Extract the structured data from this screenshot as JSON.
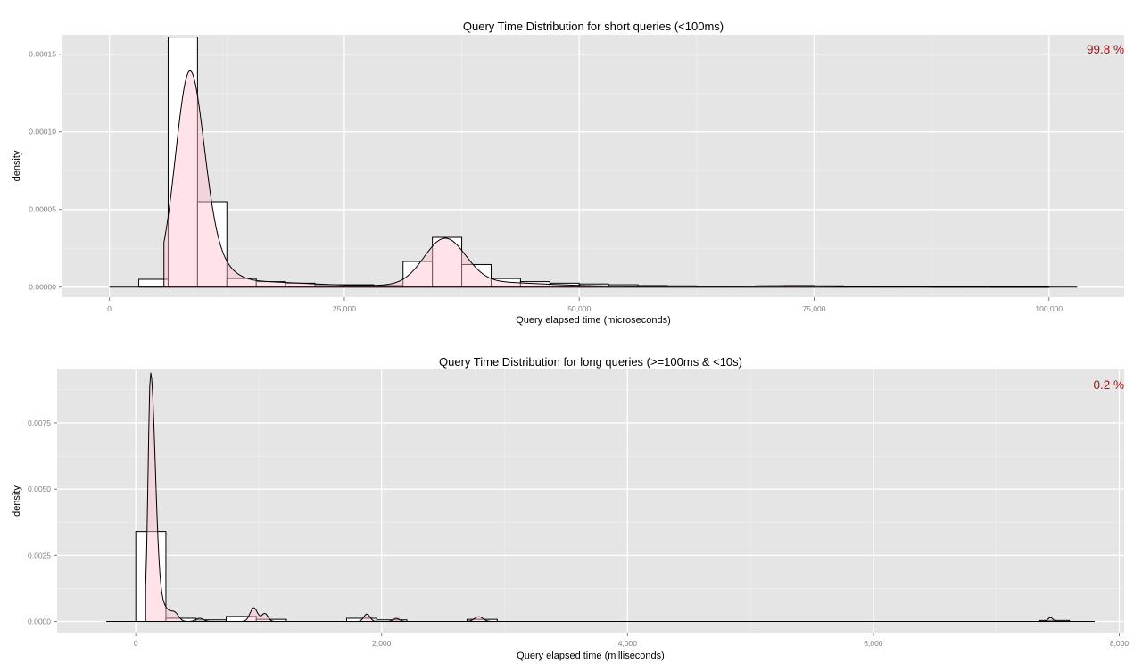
{
  "chart_data": [
    {
      "type": "histogram",
      "title": "Query Time Distribution for short queries (<100ms)",
      "xlabel": "Query elapsed time (microseconds)",
      "ylabel": "density",
      "annotation": "99.8 %",
      "annotation_color": "#a50f15",
      "background": "#e5e5e5",
      "grid": true,
      "xlim": [
        -5000,
        108000
      ],
      "ylim": [
        -6.5e-06,
        0.0001625
      ],
      "xticks": [
        0,
        25000,
        50000,
        75000,
        100000
      ],
      "xtick_labels": [
        "0",
        "25,000",
        "50,000",
        "75,000",
        "100,000"
      ],
      "yticks": [
        0,
        5e-05,
        0.0001,
        0.00015
      ],
      "ytick_labels": [
        "0.00000",
        "0.00005",
        "0.00010",
        "0.00015"
      ],
      "bins": [
        {
          "x0": 3125,
          "x1": 6250,
          "density": 5e-06
        },
        {
          "x0": 6250,
          "x1": 9375,
          "density": 0.000161
        },
        {
          "x0": 9375,
          "x1": 12500,
          "density": 5.5e-05
        },
        {
          "x0": 12500,
          "x1": 15625,
          "density": 5.5e-06
        },
        {
          "x0": 15625,
          "x1": 18750,
          "density": 3.5e-06
        },
        {
          "x0": 18750,
          "x1": 21875,
          "density": 2.5e-06
        },
        {
          "x0": 21875,
          "x1": 25000,
          "density": 1.5e-06
        },
        {
          "x0": 25000,
          "x1": 28125,
          "density": 1.5e-06
        },
        {
          "x0": 28125,
          "x1": 31250,
          "density": 1e-06
        },
        {
          "x0": 31250,
          "x1": 34375,
          "density": 1.65e-05
        },
        {
          "x0": 34375,
          "x1": 37500,
          "density": 3.2e-05
        },
        {
          "x0": 37500,
          "x1": 40625,
          "density": 1.45e-05
        },
        {
          "x0": 40625,
          "x1": 43750,
          "density": 5.5e-06
        },
        {
          "x0": 43750,
          "x1": 46875,
          "density": 3.5e-06
        },
        {
          "x0": 46875,
          "x1": 50000,
          "density": 2.5e-06
        },
        {
          "x0": 50000,
          "x1": 53125,
          "density": 2e-06
        },
        {
          "x0": 53125,
          "x1": 56250,
          "density": 1.5e-06
        },
        {
          "x0": 56250,
          "x1": 59375,
          "density": 1e-06
        },
        {
          "x0": 59375,
          "x1": 62500,
          "density": 8e-07
        },
        {
          "x0": 62500,
          "x1": 65625,
          "density": 6e-07
        },
        {
          "x0": 65625,
          "x1": 68750,
          "density": 6e-07
        },
        {
          "x0": 68750,
          "x1": 71875,
          "density": 8e-07
        },
        {
          "x0": 71875,
          "x1": 75000,
          "density": 1e-06
        },
        {
          "x0": 75000,
          "x1": 78125,
          "density": 8e-07
        },
        {
          "x0": 78125,
          "x1": 81250,
          "density": 5e-07
        },
        {
          "x0": 81250,
          "x1": 84375,
          "density": 4e-07
        },
        {
          "x0": 84375,
          "x1": 87500,
          "density": 3e-07
        },
        {
          "x0": 87500,
          "x1": 90625,
          "density": 2e-07
        },
        {
          "x0": 90625,
          "x1": 93750,
          "density": 2e-07
        },
        {
          "x0": 93750,
          "x1": 96875,
          "density": 1e-07
        },
        {
          "x0": 96875,
          "x1": 100000,
          "density": 1e-07
        }
      ],
      "density_curve": {
        "x_start": 5800,
        "x_end": 100000,
        "baseline_x": [
          0,
          103000
        ],
        "components": [
          {
            "mean": 8500,
            "sd": 1500,
            "peak": 0.0001265,
            "sd_right": 1500
          },
          {
            "mean": 10500,
            "sd": 2000,
            "peak": 1.5e-05,
            "sd_right": 2000
          },
          {
            "mean": 12500,
            "sd": 8000,
            "peak": 4e-06,
            "sd_right": 8000
          },
          {
            "mean": 35700,
            "sd": 2200,
            "peak": 2.9e-05,
            "sd_right": 2200
          },
          {
            "mean": 40000,
            "sd": 6000,
            "peak": 3e-06,
            "sd_right": 6000
          },
          {
            "mean": 62000,
            "sd": 12000,
            "peak": 6e-07,
            "sd_right": 12000
          },
          {
            "mean": 73000,
            "sd": 3000,
            "peak": 5e-07,
            "sd_right": 3000
          }
        ],
        "fill_color": "#ffc0cb",
        "fill_opacity": 0.45
      }
    },
    {
      "type": "histogram",
      "title": "Query Time Distribution for long queries (>=100ms & <10s)",
      "xlabel": "Query elapsed time (milliseconds)",
      "ylabel": "density",
      "annotation": "0.2 %",
      "annotation_color": "#a50f15",
      "background": "#e5e5e5",
      "grid": true,
      "xlim": [
        -640,
        8040
      ],
      "ylim": [
        -0.00042,
        0.00952
      ],
      "xticks": [
        0,
        2000,
        4000,
        6000,
        8000
      ],
      "xtick_labels": [
        "0",
        "2,000",
        "4,000",
        "6,000",
        "8,000"
      ],
      "yticks": [
        0,
        0.0025,
        0.005,
        0.0075
      ],
      "ytick_labels": [
        "0.0000",
        "0.0025",
        "0.0050",
        "0.0075"
      ],
      "bins": [
        {
          "x0": 0,
          "x1": 245,
          "density": 0.0034
        },
        {
          "x0": 245,
          "x1": 490,
          "density": 0.00012
        },
        {
          "x0": 490,
          "x1": 735,
          "density": 6e-05
        },
        {
          "x0": 735,
          "x1": 980,
          "density": 0.00019
        },
        {
          "x0": 980,
          "x1": 1225,
          "density": 8e-05
        },
        {
          "x0": 1715,
          "x1": 1960,
          "density": 0.00012
        },
        {
          "x0": 1960,
          "x1": 2205,
          "density": 6e-05
        },
        {
          "x0": 2695,
          "x1": 2940,
          "density": 8e-05
        },
        {
          "x0": 7350,
          "x1": 7595,
          "density": 4e-05
        }
      ],
      "density_curve": {
        "x_start": 80,
        "x_end": 7595,
        "baseline_x": [
          -240,
          7800
        ],
        "components": [
          {
            "mean": 120,
            "sd": 20,
            "peak": 0.0092,
            "sd_right": 38
          },
          {
            "mean": 210,
            "sd": 60,
            "peak": 0.0006,
            "sd_right": 60
          },
          {
            "mean": 320,
            "sd": 30,
            "peak": 0.00025,
            "sd_right": 30
          },
          {
            "mean": 520,
            "sd": 30,
            "peak": 0.00012,
            "sd_right": 30
          },
          {
            "mean": 960,
            "sd": 30,
            "peak": 0.00052,
            "sd_right": 30
          },
          {
            "mean": 1050,
            "sd": 25,
            "peak": 0.0003,
            "sd_right": 25
          },
          {
            "mean": 1880,
            "sd": 25,
            "peak": 0.00028,
            "sd_right": 25
          },
          {
            "mean": 2120,
            "sd": 25,
            "peak": 0.00012,
            "sd_right": 25
          },
          {
            "mean": 2790,
            "sd": 35,
            "peak": 0.00018,
            "sd_right": 35
          },
          {
            "mean": 7440,
            "sd": 20,
            "peak": 0.00015,
            "sd_right": 20
          }
        ],
        "fill_color": "#ffc0cb",
        "fill_opacity": 0.45
      }
    }
  ]
}
